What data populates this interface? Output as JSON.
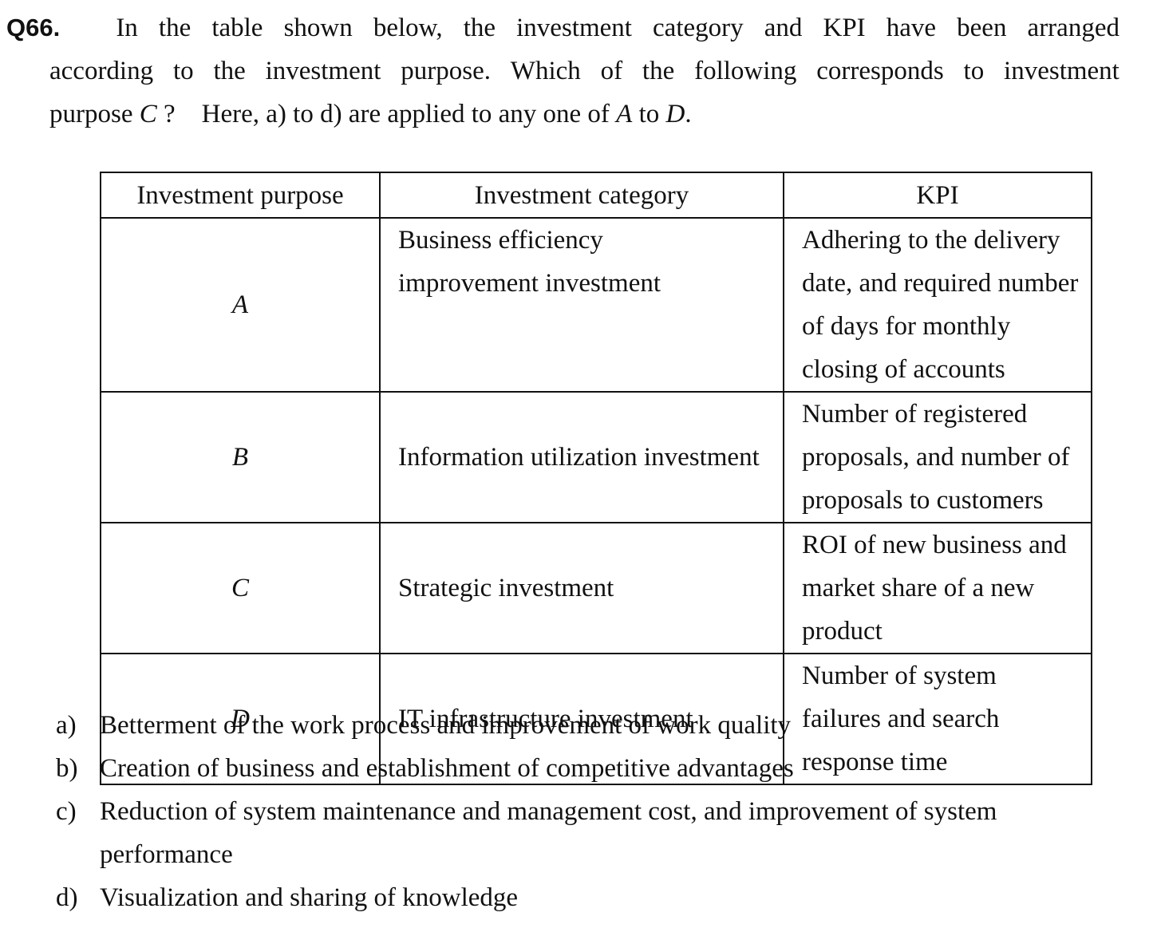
{
  "question": {
    "number": "Q66.",
    "line1_words": [
      "In",
      "the",
      "table",
      "shown",
      "below,",
      "the",
      "investment",
      "category",
      "and",
      "KPI",
      "have",
      "been",
      "arranged"
    ],
    "line2_words": [
      "according",
      "to",
      "the",
      "investment",
      "purpose.",
      "Which",
      "of",
      "the",
      "following",
      "corresponds",
      "to",
      "investment"
    ],
    "line3_prefix": "purpose ",
    "line3_var": "C",
    "line3_mid": " ?    Here, a) to d) are applied to any one of ",
    "line3_var_a": "A",
    "line3_to": " to ",
    "line3_var_d": "D",
    "line3_end": "."
  },
  "table": {
    "headers": [
      "Investment purpose",
      "Investment category",
      "KPI"
    ],
    "rows": [
      {
        "purpose": "A",
        "category": "Business efficiency improvement investment",
        "kpi": "Adhering to the delivery date, and required number of days for monthly closing of accounts"
      },
      {
        "purpose": "B",
        "category": "Information utilization investment",
        "kpi": "Number of registered proposals, and number of proposals to customers"
      },
      {
        "purpose": "C",
        "category": "Strategic investment",
        "kpi": "ROI of new business and market share of a new product"
      },
      {
        "purpose": "D",
        "category": "IT infrastructure investment",
        "kpi": "Number of system failures and search response time"
      }
    ]
  },
  "options": [
    {
      "label": "a)",
      "text": "Betterment of the work process and improvement of work quality"
    },
    {
      "label": "b)",
      "text": "Creation of business and establishment of competitive advantages"
    },
    {
      "label": "c)",
      "text": "Reduction of system maintenance and management cost, and improvement of system performance"
    },
    {
      "label": "d)",
      "text": "Visualization and sharing of knowledge"
    }
  ]
}
